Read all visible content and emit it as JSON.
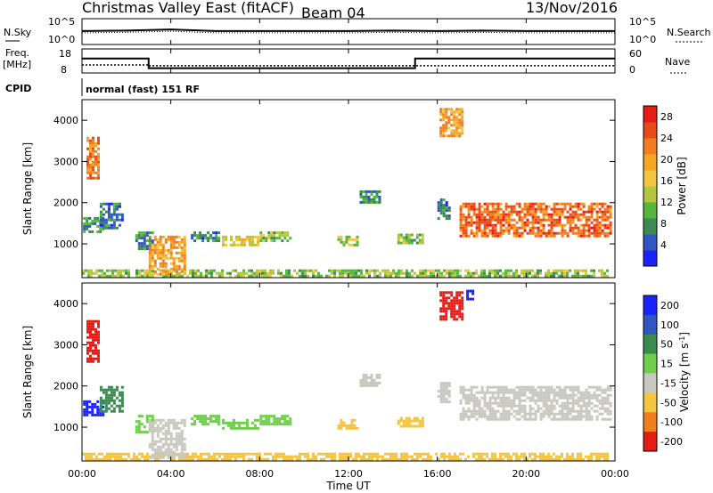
{
  "header": {
    "title": "Christmas Valley East (fitACF)",
    "beam": "Beam 04",
    "date": "13/Nov/2016"
  },
  "params": {
    "nsky_label": "N.Sky",
    "nsearch_label": "N.Search",
    "freq_label": "Freq.",
    "freq_unit": "[MHz]",
    "nave_label": "Nave",
    "cpid_label": "CPID",
    "cpid_text": "normal (fast) 151 RF",
    "noise_ticks": [
      "10^5",
      "10^0"
    ],
    "freq_ticks": [
      "18",
      "8"
    ],
    "nave_ticks": [
      "60",
      "0"
    ]
  },
  "x_axis": {
    "label": "Time UT",
    "ticks": [
      "00:00",
      "04:00",
      "08:00",
      "12:00",
      "16:00",
      "20:00",
      "00:00"
    ]
  },
  "chart_data": [
    {
      "type": "line",
      "name": "noise",
      "xlim": [
        0,
        24
      ],
      "series": [
        {
          "name": "N.Sky",
          "x": [
            0,
            2,
            4,
            6,
            8,
            10,
            12,
            14,
            16,
            18,
            20,
            22,
            24
          ],
          "values": [
            2.6,
            2.7,
            2.9,
            2.6,
            2.6,
            2.6,
            2.6,
            2.7,
            2.6,
            2.7,
            2.6,
            2.6,
            2.6
          ]
        }
      ]
    },
    {
      "type": "line",
      "name": "frequency",
      "xlim": [
        0,
        24
      ],
      "series": [
        {
          "name": "Freq",
          "x": [
            0,
            3,
            3,
            15,
            15,
            24
          ],
          "values": [
            14,
            14,
            10,
            10,
            14,
            14
          ]
        },
        {
          "name": "Nave",
          "x": [
            0,
            3,
            3,
            24
          ],
          "values": [
            20,
            20,
            18,
            18
          ]
        }
      ]
    },
    {
      "type": "heatmap",
      "name": "power",
      "xlim": [
        0,
        24
      ],
      "ylim": [
        180,
        4500
      ],
      "ylabel": "Slant Range [km]",
      "colorbar": {
        "label": "Power [dB]",
        "ticks": [
          "4",
          "8",
          "12",
          "16",
          "20",
          "24",
          "28"
        ],
        "range": [
          0,
          30
        ]
      },
      "colors": [
        "#1a23ff",
        "#2f56c2",
        "#3b8a4f",
        "#55b63e",
        "#b4c63d",
        "#f5c542",
        "#f5a623",
        "#f07d1e",
        "#ea4a17",
        "#e51b14"
      ],
      "regions": [
        {
          "t0": 0.0,
          "t1": 23.6,
          "r0": 200,
          "r1": 380,
          "level": 12
        },
        {
          "t0": 0.05,
          "t1": 0.9,
          "r0": 1300,
          "r1": 1650,
          "level": 8
        },
        {
          "t0": 0.2,
          "t1": 0.8,
          "r0": 2600,
          "r1": 3600,
          "level": 22
        },
        {
          "t0": 0.8,
          "t1": 1.8,
          "r0": 1400,
          "r1": 2000,
          "level": 6
        },
        {
          "t0": 2.4,
          "t1": 3.2,
          "r0": 900,
          "r1": 1300,
          "level": 8
        },
        {
          "t0": 3.0,
          "t1": 4.6,
          "r0": 280,
          "r1": 1200,
          "level": 20
        },
        {
          "t0": 4.9,
          "t1": 6.2,
          "r0": 1100,
          "r1": 1300,
          "level": 6
        },
        {
          "t0": 6.3,
          "t1": 7.9,
          "r0": 1000,
          "r1": 1200,
          "level": 16
        },
        {
          "t0": 8.0,
          "t1": 9.4,
          "r0": 1050,
          "r1": 1300,
          "level": 12
        },
        {
          "t0": 11.5,
          "t1": 12.4,
          "r0": 950,
          "r1": 1200,
          "level": 14
        },
        {
          "t0": 12.5,
          "t1": 13.4,
          "r0": 2000,
          "r1": 2300,
          "level": 8
        },
        {
          "t0": 14.2,
          "t1": 15.4,
          "r0": 1050,
          "r1": 1250,
          "level": 12
        },
        {
          "t0": 16.0,
          "t1": 16.6,
          "r0": 1600,
          "r1": 2100,
          "level": 6
        },
        {
          "t0": 16.1,
          "t1": 17.1,
          "r0": 3600,
          "r1": 4300,
          "level": 20
        },
        {
          "t0": 17.0,
          "t1": 23.8,
          "r0": 1200,
          "r1": 2000,
          "level": 24
        }
      ]
    },
    {
      "type": "heatmap",
      "name": "velocity",
      "xlim": [
        0,
        24
      ],
      "ylim": [
        180,
        4500
      ],
      "ylabel": "Slant Range [km]",
      "colorbar": {
        "label": "Velocity [m s^-1]",
        "ticks": [
          "200",
          "100",
          "50",
          "15",
          "-15",
          "-50",
          "-100",
          "-200"
        ],
        "range": [
          -250,
          250
        ]
      },
      "colors": [
        "#e51b14",
        "#f07d1e",
        "#f5c542",
        "#c8c8c0",
        "#6fcf4a",
        "#3b8a4f",
        "#1a23ff"
      ],
      "regions": [
        {
          "t0": 0.0,
          "t1": 23.6,
          "r0": 200,
          "r1": 380,
          "level": -40
        },
        {
          "t0": 0.2,
          "t1": 0.8,
          "r0": 2600,
          "r1": 3600,
          "level": -180
        },
        {
          "t0": 0.05,
          "t1": 0.9,
          "r0": 1300,
          "r1": 1650,
          "level": 180
        },
        {
          "t0": 0.8,
          "t1": 1.8,
          "r0": 1400,
          "r1": 2000,
          "level": 120
        },
        {
          "t0": 2.4,
          "t1": 3.2,
          "r0": 900,
          "r1": 1300,
          "level": 40
        },
        {
          "t0": 3.0,
          "t1": 4.6,
          "r0": 280,
          "r1": 1200,
          "level": 0
        },
        {
          "t0": 4.9,
          "t1": 6.2,
          "r0": 1100,
          "r1": 1300,
          "level": 40
        },
        {
          "t0": 6.3,
          "t1": 7.9,
          "r0": 1000,
          "r1": 1200,
          "level": 40
        },
        {
          "t0": 8.0,
          "t1": 9.4,
          "r0": 1050,
          "r1": 1300,
          "level": 40
        },
        {
          "t0": 11.5,
          "t1": 12.4,
          "r0": 950,
          "r1": 1200,
          "level": -40
        },
        {
          "t0": 12.5,
          "t1": 13.4,
          "r0": 2000,
          "r1": 2300,
          "level": 0
        },
        {
          "t0": 14.2,
          "t1": 15.4,
          "r0": 1050,
          "r1": 1250,
          "level": -40
        },
        {
          "t0": 16.1,
          "t1": 17.1,
          "r0": 3600,
          "r1": 4300,
          "level": -200
        },
        {
          "t0": 17.3,
          "t1": 17.6,
          "r0": 4100,
          "r1": 4400,
          "level": 220
        },
        {
          "t0": 16.0,
          "t1": 16.6,
          "r0": 1600,
          "r1": 2100,
          "level": 0
        },
        {
          "t0": 17.0,
          "t1": 23.8,
          "r0": 1200,
          "r1": 2000,
          "level": 0
        }
      ]
    }
  ]
}
